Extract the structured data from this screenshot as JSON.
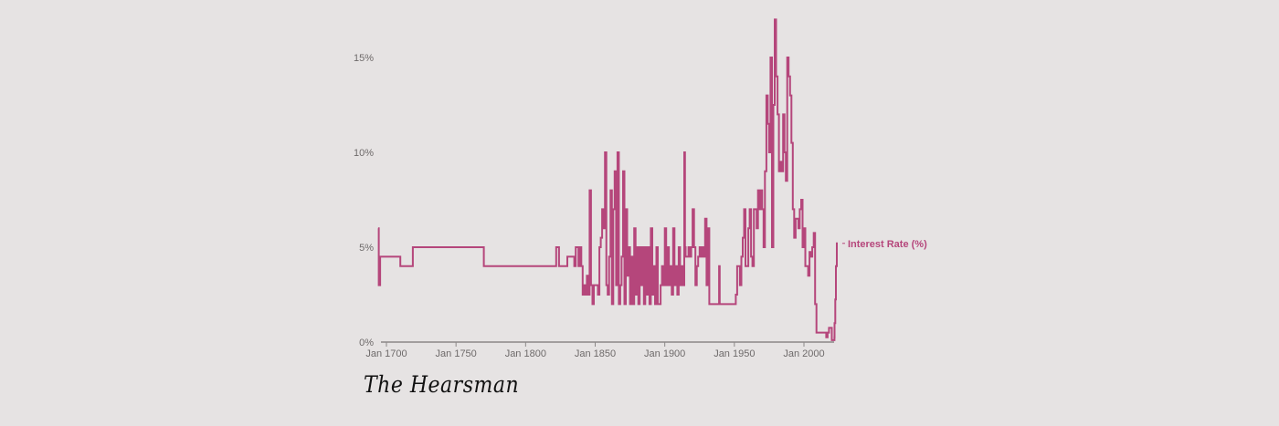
{
  "chart_data": {
    "type": "line",
    "step": true,
    "title": "",
    "xlabel": "",
    "ylabel": "",
    "series": [
      {
        "name": "Interest Rate (%)",
        "color": "#b5467b",
        "points": [
          [
            1694,
            6.0
          ],
          [
            1694.5,
            3.0
          ],
          [
            1695.5,
            4.5
          ],
          [
            1710,
            4.0
          ],
          [
            1719,
            5.0
          ],
          [
            1770,
            4.0
          ],
          [
            1822,
            5.0
          ],
          [
            1824,
            4.0
          ],
          [
            1827,
            4.0
          ],
          [
            1830,
            4.5
          ],
          [
            1835,
            4.0
          ],
          [
            1836,
            5.0
          ],
          [
            1838,
            4.0
          ],
          [
            1839,
            5.0
          ],
          [
            1840,
            4.0
          ],
          [
            1841,
            2.5
          ],
          [
            1842,
            3.0
          ],
          [
            1843,
            2.5
          ],
          [
            1844,
            3.5
          ],
          [
            1845,
            2.5
          ],
          [
            1846,
            8.0
          ],
          [
            1847,
            3.0
          ],
          [
            1848,
            2.0
          ],
          [
            1849,
            3.0
          ],
          [
            1852,
            2.5
          ],
          [
            1853,
            5.0
          ],
          [
            1854,
            5.5
          ],
          [
            1855,
            7.0
          ],
          [
            1856,
            6.0
          ],
          [
            1857,
            10.0
          ],
          [
            1858,
            3.0
          ],
          [
            1859,
            2.5
          ],
          [
            1860,
            4.5
          ],
          [
            1861,
            8.0
          ],
          [
            1862,
            2.0
          ],
          [
            1863,
            7.0
          ],
          [
            1864,
            9.0
          ],
          [
            1865,
            3.0
          ],
          [
            1866,
            10.0
          ],
          [
            1867,
            2.0
          ],
          [
            1868,
            3.0
          ],
          [
            1869,
            4.5
          ],
          [
            1870,
            9.0
          ],
          [
            1871,
            2.0
          ],
          [
            1872,
            7.0
          ],
          [
            1873,
            3.5
          ],
          [
            1874,
            5.0
          ],
          [
            1875,
            2.0
          ],
          [
            1876,
            4.5
          ],
          [
            1877,
            2.0
          ],
          [
            1878,
            6.0
          ],
          [
            1879,
            2.5
          ],
          [
            1880,
            5.0
          ],
          [
            1881,
            2.0
          ],
          [
            1882,
            5.0
          ],
          [
            1883,
            3.0
          ],
          [
            1884,
            5.0
          ],
          [
            1885,
            2.0
          ],
          [
            1886,
            5.0
          ],
          [
            1887,
            2.5
          ],
          [
            1888,
            5.0
          ],
          [
            1889,
            2.0
          ],
          [
            1890,
            6.0
          ],
          [
            1891,
            2.5
          ],
          [
            1892,
            4.0
          ],
          [
            1893,
            2.0
          ],
          [
            1894,
            5.0
          ],
          [
            1895,
            2.0
          ],
          [
            1897,
            3.0
          ],
          [
            1898,
            4.0
          ],
          [
            1899,
            3.0
          ],
          [
            1900,
            6.0
          ],
          [
            1901,
            3.0
          ],
          [
            1902,
            5.0
          ],
          [
            1903,
            3.0
          ],
          [
            1904,
            4.0
          ],
          [
            1905,
            2.5
          ],
          [
            1906,
            6.0
          ],
          [
            1907,
            3.0
          ],
          [
            1908,
            4.0
          ],
          [
            1909,
            2.5
          ],
          [
            1910,
            5.0
          ],
          [
            1911,
            3.0
          ],
          [
            1912,
            4.0
          ],
          [
            1913,
            3.0
          ],
          [
            1914,
            10.0
          ],
          [
            1914.5,
            5.0
          ],
          [
            1915,
            4.5
          ],
          [
            1917,
            5.0
          ],
          [
            1918,
            4.5
          ],
          [
            1919,
            5.0
          ],
          [
            1920,
            7.0
          ],
          [
            1921,
            5.0
          ],
          [
            1922,
            3.0
          ],
          [
            1923,
            4.0
          ],
          [
            1924,
            4.5
          ],
          [
            1925,
            5.0
          ],
          [
            1926,
            4.5
          ],
          [
            1927,
            5.0
          ],
          [
            1928,
            4.5
          ],
          [
            1929,
            6.5
          ],
          [
            1930,
            3.0
          ],
          [
            1931,
            6.0
          ],
          [
            1932,
            2.0
          ],
          [
            1939,
            4.0
          ],
          [
            1939.5,
            2.0
          ],
          [
            1951,
            2.5
          ],
          [
            1952,
            4.0
          ],
          [
            1954,
            3.0
          ],
          [
            1955,
            4.5
          ],
          [
            1956,
            5.5
          ],
          [
            1957,
            7.0
          ],
          [
            1958,
            4.0
          ],
          [
            1960,
            6.0
          ],
          [
            1961,
            7.0
          ],
          [
            1962,
            4.5
          ],
          [
            1963,
            4.0
          ],
          [
            1964,
            7.0
          ],
          [
            1966,
            6.0
          ],
          [
            1967,
            8.0
          ],
          [
            1968,
            7.0
          ],
          [
            1969,
            8.0
          ],
          [
            1970,
            7.0
          ],
          [
            1971,
            5.0
          ],
          [
            1972,
            9.0
          ],
          [
            1973,
            13.0
          ],
          [
            1974,
            11.5
          ],
          [
            1975,
            10.0
          ],
          [
            1976,
            15.0
          ],
          [
            1977,
            5.0
          ],
          [
            1978,
            12.5
          ],
          [
            1979,
            17.0
          ],
          [
            1980,
            14.0
          ],
          [
            1981,
            12.0
          ],
          [
            1982,
            9.0
          ],
          [
            1983,
            9.5
          ],
          [
            1984,
            9.0
          ],
          [
            1985,
            12.0
          ],
          [
            1986,
            10.0
          ],
          [
            1987,
            8.5
          ],
          [
            1988,
            15.0
          ],
          [
            1989,
            14.0
          ],
          [
            1990,
            13.0
          ],
          [
            1991,
            10.5
          ],
          [
            1992,
            7.0
          ],
          [
            1993,
            5.5
          ],
          [
            1994,
            6.5
          ],
          [
            1995,
            6.5
          ],
          [
            1996,
            6.0
          ],
          [
            1997,
            7.0
          ],
          [
            1998,
            7.5
          ],
          [
            1999,
            5.0
          ],
          [
            2000,
            6.0
          ],
          [
            2001,
            4.0
          ],
          [
            2003,
            3.5
          ],
          [
            2004,
            4.75
          ],
          [
            2005,
            4.5
          ],
          [
            2006,
            5.0
          ],
          [
            2007,
            5.75
          ],
          [
            2008,
            2.0
          ],
          [
            2009,
            0.5
          ],
          [
            2016,
            0.25
          ],
          [
            2017,
            0.5
          ],
          [
            2018,
            0.75
          ],
          [
            2020,
            0.1
          ],
          [
            2021.9,
            0.25
          ],
          [
            2022,
            1.0
          ],
          [
            2022.5,
            2.25
          ],
          [
            2023,
            4.0
          ],
          [
            2023.6,
            5.25
          ]
        ]
      }
    ],
    "xaxis": {
      "range": [
        1694,
        2024
      ],
      "ticks": [
        1700,
        1750,
        1800,
        1850,
        1900,
        1950,
        2000
      ],
      "tick_labels": [
        "Jan 1700",
        "Jan 1750",
        "Jan 1800",
        "Jan 1850",
        "Jan 1900",
        "Jan 1950",
        "Jan 2000"
      ]
    },
    "yaxis": {
      "range": [
        0,
        17
      ],
      "ticks": [
        0,
        5,
        10,
        15
      ],
      "tick_labels": [
        "0%",
        "5%",
        "10%",
        "15%"
      ]
    },
    "grid": false,
    "legend_position": "inline-end-label"
  },
  "signature": "The Hearsman",
  "colors": {
    "background": "#e6e3e3",
    "line": "#b5467b",
    "axis": "#8c8888",
    "tick_text": "#6e6a6a"
  }
}
